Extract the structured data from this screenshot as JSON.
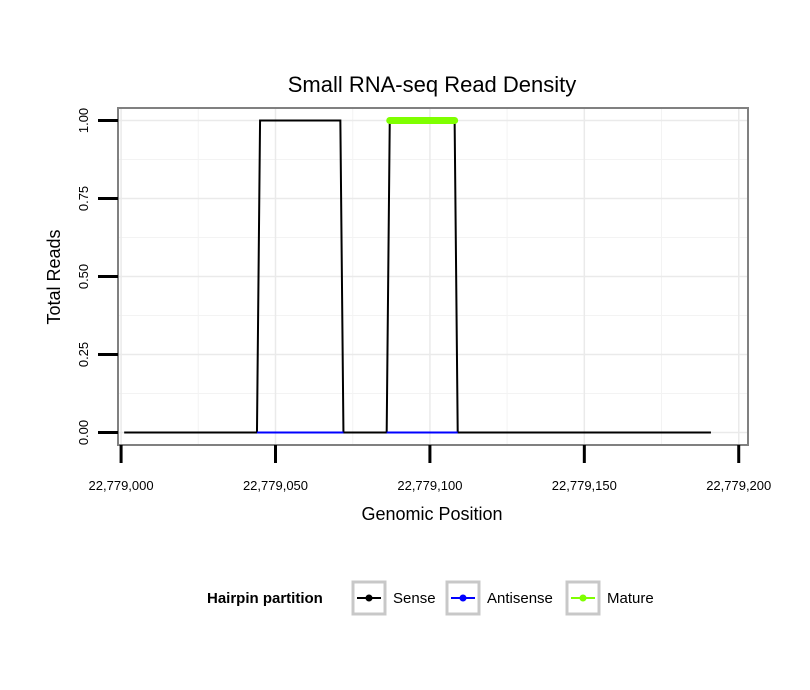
{
  "chart_data": {
    "type": "line",
    "title": "Small RNA-seq Read Density",
    "xlabel": "Genomic Position",
    "ylabel": "Total Reads",
    "xlim": [
      22778999,
      22779203
    ],
    "ylim": [
      -0.04,
      1.04
    ],
    "x_ticks": [
      22779000,
      22779050,
      22779100,
      22779150,
      22779200
    ],
    "x_tick_labels": [
      "22,779,000",
      "22,779,050",
      "22,779,100",
      "22,779,150",
      "22,779,200"
    ],
    "y_ticks": [
      0,
      0.25,
      0.5,
      0.75,
      1.0
    ],
    "y_tick_labels": [
      "0.00",
      "0.25",
      "0.50",
      "0.75",
      "1.00"
    ],
    "grid": true,
    "legend": {
      "title": "Hairpin partition",
      "placement": "bottom"
    },
    "series": [
      {
        "name": "Sense",
        "color": "#000000",
        "x": [
          22779001,
          22779044,
          22779045,
          22779071,
          22779072,
          22779086,
          22779087,
          22779108,
          22779109,
          22779191
        ],
        "y": [
          0,
          0,
          1,
          1,
          0,
          0,
          1,
          1,
          0,
          0
        ]
      },
      {
        "name": "Antisense",
        "color": "#0000ff",
        "x": [
          22779044,
          22779072,
          22779086,
          22779109
        ],
        "y": [
          0,
          0,
          0,
          0
        ],
        "segments": [
          [
            0,
            1
          ],
          [
            2,
            3
          ]
        ]
      },
      {
        "name": "Mature",
        "color": "#7fff00",
        "x": [
          22779087,
          22779108
        ],
        "y": [
          1,
          1
        ]
      }
    ]
  }
}
